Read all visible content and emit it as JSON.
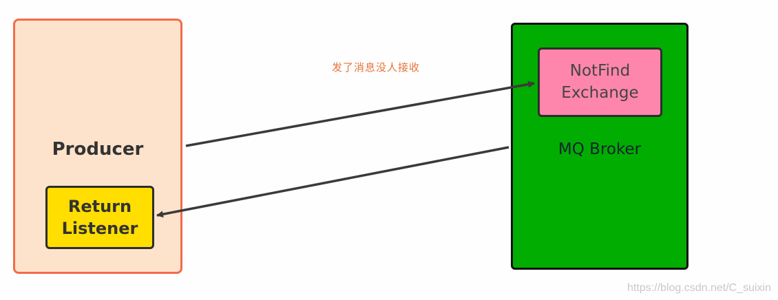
{
  "producer": {
    "label": "Producer"
  },
  "return_listener": {
    "label": "Return\nListener"
  },
  "broker": {
    "label": "MQ Broker"
  },
  "notfind_exchange": {
    "label": "NotFind\nExchange"
  },
  "annotation": "发了消息没人接收",
  "watermark": "https://blog.csdn.net/C_suixin",
  "colors": {
    "producer_fill": "#fde3cb",
    "producer_border": "#f36b4b",
    "return_fill": "#ffde00",
    "broker_fill": "#01ad00",
    "notfind_fill": "#fe86ac",
    "arrow": "#3a3a3a",
    "annotation": "#e8733a"
  }
}
